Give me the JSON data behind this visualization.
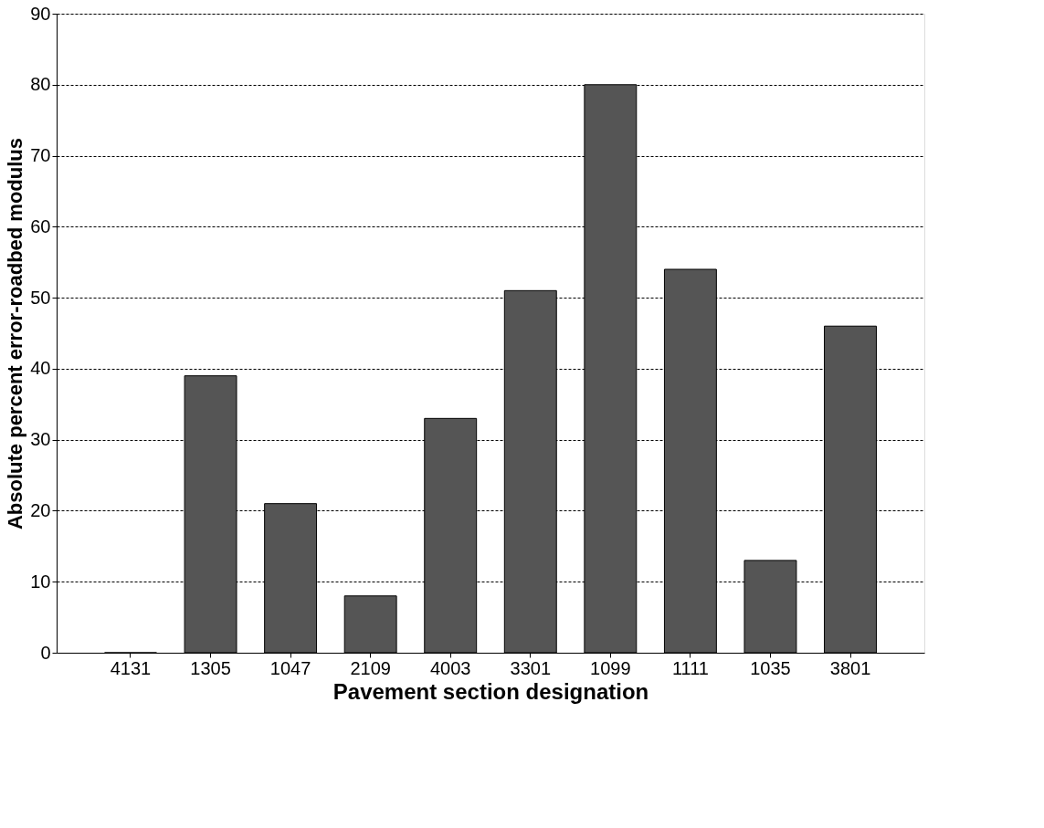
{
  "chart_data": {
    "type": "bar",
    "xlabel": "Pavement section designation",
    "ylabel": "Absolute percent error-roadbed modulus",
    "categories": [
      "4131",
      "1305",
      "1047",
      "2109",
      "4003",
      "3301",
      "1099",
      "1111",
      "1035",
      "3801"
    ],
    "series": [
      {
        "color": "#555555",
        "values": [
          0,
          39,
          21,
          8,
          33,
          51,
          80,
          54,
          13,
          46
        ]
      }
    ],
    "ylim": [
      0,
      90
    ],
    "yticks": [
      0,
      10,
      20,
      30,
      40,
      50,
      60,
      70,
      80,
      90
    ],
    "grid": "y"
  }
}
